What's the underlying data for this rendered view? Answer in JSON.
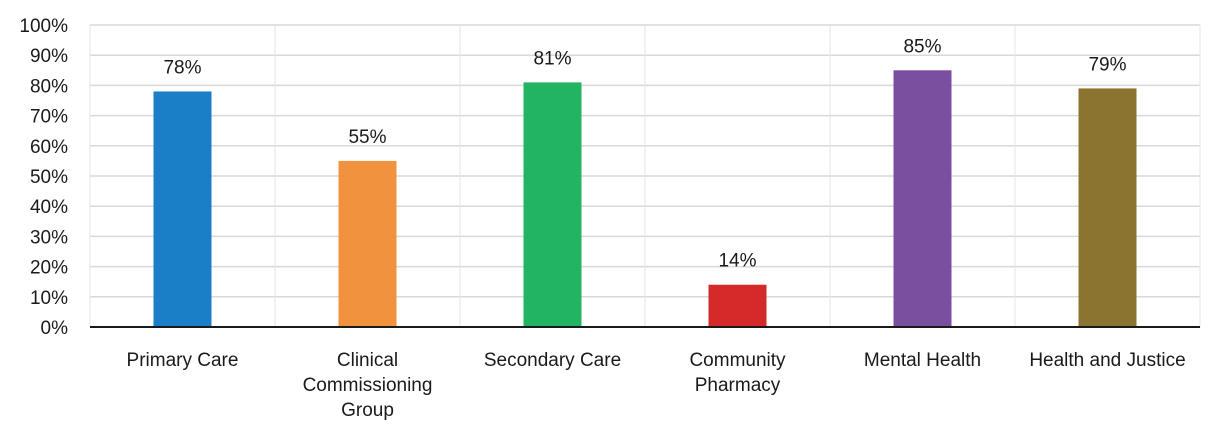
{
  "chart_data": {
    "type": "bar",
    "categories": [
      "Primary Care",
      "Clinical Commissioning Group",
      "Secondary Care",
      "Community Pharmacy",
      "Mental Health",
      "Health and Justice"
    ],
    "category_lines": [
      [
        "Primary Care"
      ],
      [
        "Clinical",
        "Commissioning",
        "Group"
      ],
      [
        "Secondary Care"
      ],
      [
        "Community",
        "Pharmacy"
      ],
      [
        "Mental Health"
      ],
      [
        "Health and Justice"
      ]
    ],
    "values": [
      78,
      55,
      81,
      14,
      85,
      79
    ],
    "data_labels": [
      "78%",
      "55%",
      "81%",
      "14%",
      "85%",
      "79%"
    ],
    "colors": [
      "#1a7fc7",
      "#f0923e",
      "#23b463",
      "#d42a2a",
      "#7b4fa0",
      "#8b7330"
    ],
    "ylim": [
      0,
      100
    ],
    "yticks": [
      0,
      10,
      20,
      30,
      40,
      50,
      60,
      70,
      80,
      90,
      100
    ],
    "ytick_labels": [
      "0%",
      "10%",
      "20%",
      "30%",
      "40%",
      "50%",
      "60%",
      "70%",
      "80%",
      "90%",
      "100%"
    ],
    "grid": true,
    "title": "",
    "xlabel": "",
    "ylabel": ""
  }
}
